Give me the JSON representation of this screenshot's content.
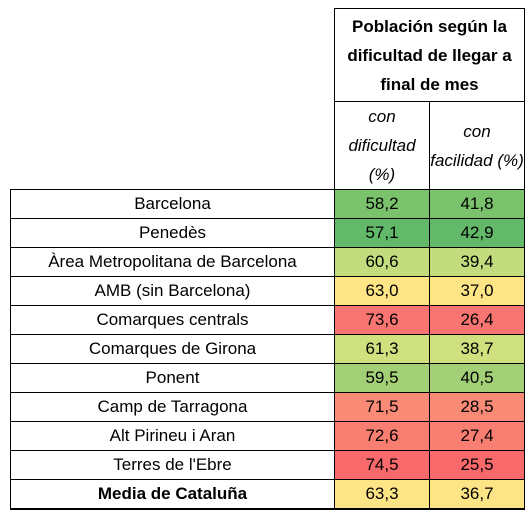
{
  "header": {
    "title": "Población según la dificultad de llegar a final de mes",
    "col1": "con dificultad (%)",
    "col2": "con facilidad (%)"
  },
  "rows": [
    {
      "region": "Barcelona",
      "dificultad": "58,2",
      "facilidad": "41,8",
      "color_dif": "#7bc26c",
      "color_fac": "#7bc26c"
    },
    {
      "region": "Penedès",
      "dificultad": "57,1",
      "facilidad": "42,9",
      "color_dif": "#63b96a",
      "color_fac": "#63b96a"
    },
    {
      "region": "Àrea Metropolitana de Barcelona",
      "dificultad": "60,6",
      "facilidad": "39,4",
      "color_dif": "#c3dc7d",
      "color_fac": "#c3dc7d"
    },
    {
      "region": "AMB (sin Barcelona)",
      "dificultad": "63,0",
      "facilidad": "37,0",
      "color_dif": "#fde586",
      "color_fac": "#fde586"
    },
    {
      "region": "Comarques centrals",
      "dificultad": "73,6",
      "facilidad": "26,4",
      "color_dif": "#f87571",
      "color_fac": "#f87571"
    },
    {
      "region": "Comarques de Girona",
      "dificultad": "61,3",
      "facilidad": "38,7",
      "color_dif": "#cfe07f",
      "color_fac": "#cfe07f"
    },
    {
      "region": "Ponent",
      "dificultad": "59,5",
      "facilidad": "40,5",
      "color_dif": "#a3cf76",
      "color_fac": "#a3cf76"
    },
    {
      "region": "Camp de Tarragona",
      "dificultad": "71,5",
      "facilidad": "28,5",
      "color_dif": "#f98a75",
      "color_fac": "#f98a75"
    },
    {
      "region": "Alt Pirineu i Aran",
      "dificultad": "72,6",
      "facilidad": "27,4",
      "color_dif": "#f97e72",
      "color_fac": "#f97e72"
    },
    {
      "region": "Terres de l'Ebre",
      "dificultad": "74,5",
      "facilidad": "25,5",
      "color_dif": "#f8696b",
      "color_fac": "#f8696b"
    },
    {
      "region": "Media de Cataluña",
      "dificultad": "63,3",
      "facilidad": "36,7",
      "color_dif": "#fde586",
      "color_fac": "#fde586"
    }
  ]
}
